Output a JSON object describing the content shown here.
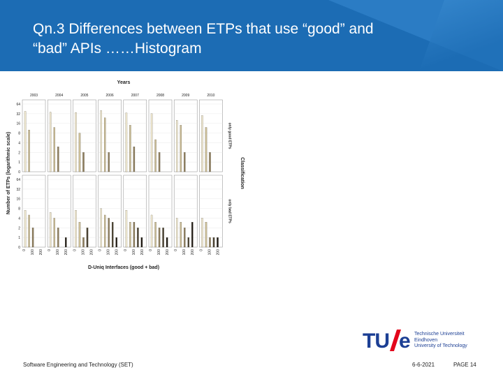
{
  "slide": {
    "title_line1": "Qn.3 Differences between ETPs that use “good” and",
    "title_line2": "“bad” APIs ……Histogram",
    "footer_left": "Software Engineering and Technology (SET)",
    "footer_date": "6-6-2021",
    "footer_page": "PAGE 14"
  },
  "logo": {
    "tu": "TU",
    "e": "e",
    "line1": "Technische Universiteit",
    "line2": "Eindhoven",
    "line3": "University of Technology"
  },
  "colors": {
    "header": "#1c6cb4",
    "logo_blue": "#1c3f94",
    "logo_red": "#e3051b"
  },
  "chart_data": {
    "type": "bar",
    "title": "Years",
    "xlabel": "D-Uniq Interfaces (good + bad)",
    "ylabel": "Number of ETPs (logarithmic scale)",
    "facet_row_label": "Classification",
    "scale": "log",
    "years": [
      "2003",
      "2004",
      "2005",
      "2006",
      "2007",
      "2008",
      "2009",
      "2010"
    ],
    "rows": [
      {
        "name": "only good ETPs",
        "y_ticks": [
          "0",
          "1",
          "2",
          "4",
          "8",
          "16",
          "32",
          "64"
        ],
        "x_ticks": [
          "0",
          "100",
          "200"
        ],
        "bins": [
          "0",
          "10",
          "20",
          "30",
          "40"
        ],
        "panels": [
          [
            38,
            10,
            0,
            0,
            0
          ],
          [
            36,
            12,
            3,
            0,
            0
          ],
          [
            35,
            8,
            2,
            0,
            0
          ],
          [
            40,
            24,
            2,
            0,
            0
          ],
          [
            34,
            14,
            3,
            0,
            0
          ],
          [
            32,
            5,
            2,
            0,
            0
          ],
          [
            20,
            14,
            2,
            0,
            0
          ],
          [
            28,
            12,
            2,
            0,
            0
          ]
        ]
      },
      {
        "name": "only bad ETPs",
        "y_ticks": [
          "0",
          "1",
          "2",
          "4",
          "8",
          "16",
          "32",
          "64"
        ],
        "x_ticks": [
          "0",
          "100",
          "200"
        ],
        "bins": [
          "0",
          "10",
          "20",
          "30",
          "40"
        ],
        "panels": [
          [
            7,
            5,
            2,
            0,
            0
          ],
          [
            6,
            4,
            2,
            0,
            1
          ],
          [
            7,
            3,
            1,
            2,
            0
          ],
          [
            8,
            5,
            4,
            3,
            1
          ],
          [
            7,
            3,
            3,
            2,
            1
          ],
          [
            5,
            3,
            2,
            2,
            1
          ],
          [
            4,
            3,
            2,
            1,
            3
          ],
          [
            4,
            3,
            1,
            1,
            1
          ]
        ]
      }
    ]
  }
}
